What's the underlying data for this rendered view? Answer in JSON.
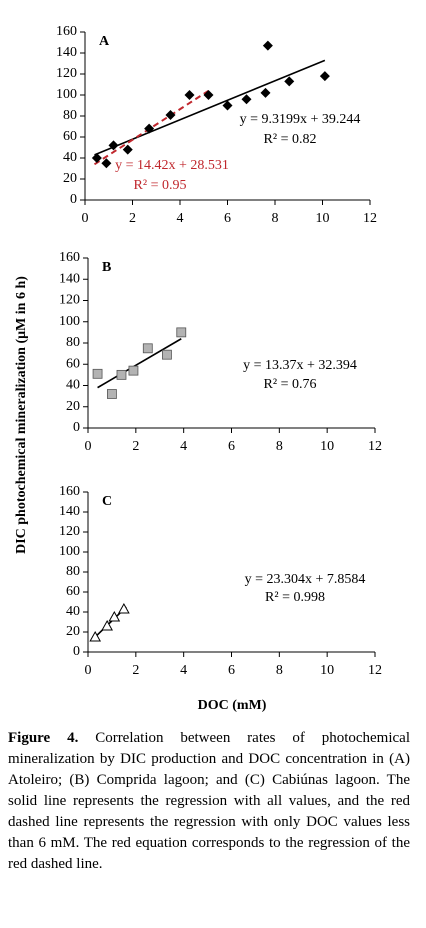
{
  "y_axis_label": "DIC photochemical mineralization (μM in 6 h)",
  "x_axis_label": "DOC (mM)",
  "caption": {
    "label": "Figure 4.",
    "text": "Correlation between rates of photochemical mineralization by DIC production and DOC concentration in (A) Atoleiro; (B) Comprida lagoon; and (C) Cabiúnas lagoon. The solid line represents the regression with all values, and the red dashed line represents the regression with only DOC values less than 6 mM. The red equation corresponds to the regression of the red dashed line."
  },
  "chart_data": [
    {
      "type": "scatter",
      "title": "A",
      "marker": "diamond",
      "color": "#000000",
      "x": [
        0.5,
        0.9,
        1.2,
        1.8,
        2.7,
        3.6,
        4.4,
        5.2,
        6.0,
        6.8,
        7.6,
        7.7,
        8.6,
        10.1
      ],
      "y": [
        40,
        35,
        52,
        48,
        68,
        81,
        100,
        100,
        90,
        96,
        102,
        147,
        113,
        118
      ],
      "xlim": [
        0,
        12
      ],
      "ylim": [
        0,
        160
      ],
      "xticks": [
        0,
        2,
        4,
        6,
        8,
        10,
        12
      ],
      "yticks": [
        0,
        20,
        40,
        60,
        80,
        100,
        120,
        140,
        160
      ],
      "trendlines": [
        {
          "x": [
            0.4,
            10.1
          ],
          "y": [
            43,
            133
          ],
          "color": "#000000",
          "dashed": false,
          "equation": "y = 9.3199x + 39.244",
          "r2": "R² = 0.82"
        },
        {
          "x": [
            0.4,
            5.2
          ],
          "y": [
            34,
            104
          ],
          "color": "#c0272d",
          "dashed": true,
          "equation": "y = 14.42x + 28.531",
          "r2": "R² = 0.95"
        }
      ]
    },
    {
      "type": "scatter",
      "title": "B",
      "marker": "square",
      "color": "#b3b3b3",
      "x": [
        0.4,
        1.0,
        1.4,
        1.9,
        2.5,
        3.3,
        3.9
      ],
      "y": [
        51,
        32,
        50,
        54,
        75,
        69,
        90
      ],
      "xlim": [
        0,
        12
      ],
      "ylim": [
        0,
        160
      ],
      "xticks": [
        0,
        2,
        4,
        6,
        8,
        10,
        12
      ],
      "yticks": [
        0,
        20,
        40,
        60,
        80,
        100,
        120,
        140,
        160
      ],
      "trendlines": [
        {
          "x": [
            0.4,
            3.9
          ],
          "y": [
            38,
            84
          ],
          "color": "#000000",
          "dashed": false,
          "equation": "y = 13.37x + 32.394",
          "r2": "R² = 0.76"
        }
      ]
    },
    {
      "type": "scatter",
      "title": "C",
      "marker": "triangle",
      "color": "#ffffff",
      "x": [
        0.3,
        0.8,
        1.1,
        1.5
      ],
      "y": [
        15,
        26,
        35,
        43
      ],
      "xlim": [
        0,
        12
      ],
      "ylim": [
        0,
        160
      ],
      "xticks": [
        0,
        2,
        4,
        6,
        8,
        10,
        12
      ],
      "yticks": [
        0,
        20,
        40,
        60,
        80,
        100,
        120,
        140,
        160
      ],
      "trendlines": [
        {
          "x": [
            0.3,
            1.6
          ],
          "y": [
            15,
            45
          ],
          "color": "#000000",
          "dashed": false,
          "equation": "y = 23.304x + 7.8584",
          "r2": "R² = 0.998"
        }
      ]
    }
  ]
}
